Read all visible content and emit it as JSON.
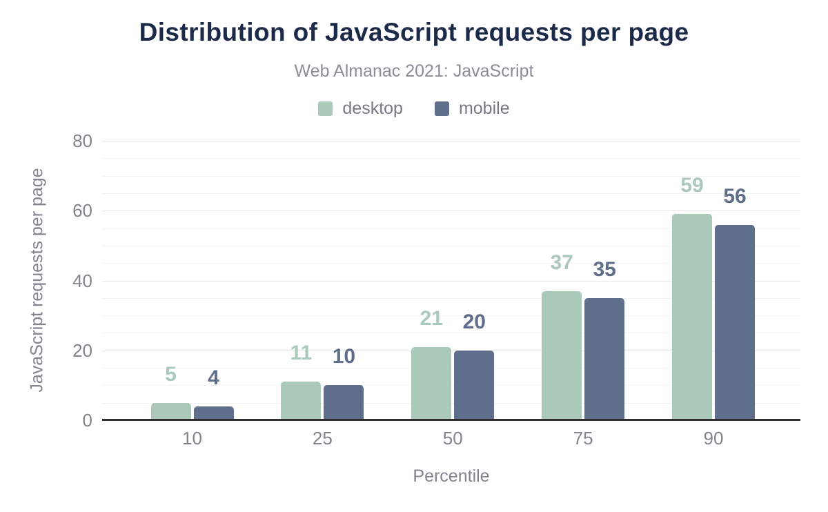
{
  "chart_data": {
    "type": "bar",
    "title": "Distribution of JavaScript requests per page",
    "subtitle": "Web Almanac 2021: JavaScript",
    "xlabel": "Percentile",
    "ylabel": "JavaScript requests per page",
    "categories": [
      "10",
      "25",
      "50",
      "75",
      "90"
    ],
    "series": [
      {
        "name": "desktop",
        "color": "#aac9b8",
        "values": [
          5,
          11,
          21,
          37,
          59
        ]
      },
      {
        "name": "mobile",
        "color": "#5f6e8a",
        "values": [
          4,
          10,
          20,
          35,
          56
        ]
      }
    ],
    "ylim": [
      0,
      80
    ],
    "y_ticks": [
      0,
      20,
      40,
      60,
      80
    ],
    "y_minor_step": 5,
    "grid": true,
    "legend_position": "top",
    "value_labels_shown": true
  },
  "theme": {
    "background": "#ffffff",
    "title_color": "#1c2a4a",
    "subtitle_color": "#8a8e95",
    "axis_text_color": "#81858b",
    "legend_text_color": "#757a82",
    "gridline_major_color": "#e6e6e6",
    "gridline_minor_color": "#f3f3f3",
    "axis_line_color": "#2f2f2f"
  }
}
